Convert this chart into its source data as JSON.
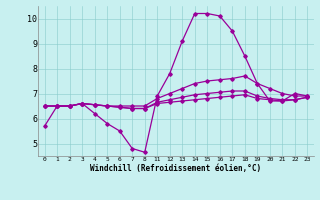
{
  "bg_color": "#c8f0f0",
  "line_color": "#990099",
  "xlabel": "Windchill (Refroidissement éolien,°C)",
  "ylim": [
    4.5,
    10.5
  ],
  "yticks": [
    5,
    6,
    7,
    8,
    9,
    10
  ],
  "xtick_labels": [
    "0",
    "1",
    "2",
    "3",
    "4",
    "5",
    "6",
    "7",
    "8",
    "11",
    "12",
    "13",
    "14",
    "15",
    "16",
    "17",
    "18",
    "19",
    "20",
    "21",
    "22",
    "23"
  ],
  "line1_y": [
    5.7,
    6.5,
    6.5,
    6.6,
    6.2,
    5.8,
    5.5,
    4.8,
    4.65,
    6.9,
    7.8,
    9.1,
    10.2,
    10.2,
    10.1,
    9.5,
    8.5,
    7.4,
    6.7,
    6.7,
    7.0,
    6.9
  ],
  "line2_y": [
    6.5,
    6.5,
    6.5,
    6.6,
    6.55,
    6.5,
    6.5,
    6.5,
    6.5,
    6.8,
    7.0,
    7.2,
    7.4,
    7.5,
    7.55,
    7.6,
    7.7,
    7.4,
    7.2,
    7.0,
    6.9,
    6.9
  ],
  "line3_y": [
    6.5,
    6.5,
    6.5,
    6.6,
    6.55,
    6.5,
    6.45,
    6.4,
    6.4,
    6.65,
    6.75,
    6.85,
    6.95,
    7.0,
    7.05,
    7.1,
    7.1,
    6.9,
    6.8,
    6.75,
    6.75,
    6.85
  ],
  "line4_y": [
    6.5,
    6.5,
    6.5,
    6.6,
    6.55,
    6.5,
    6.45,
    6.4,
    6.4,
    6.6,
    6.65,
    6.7,
    6.75,
    6.8,
    6.85,
    6.9,
    6.95,
    6.8,
    6.75,
    6.7,
    6.75,
    6.85
  ]
}
